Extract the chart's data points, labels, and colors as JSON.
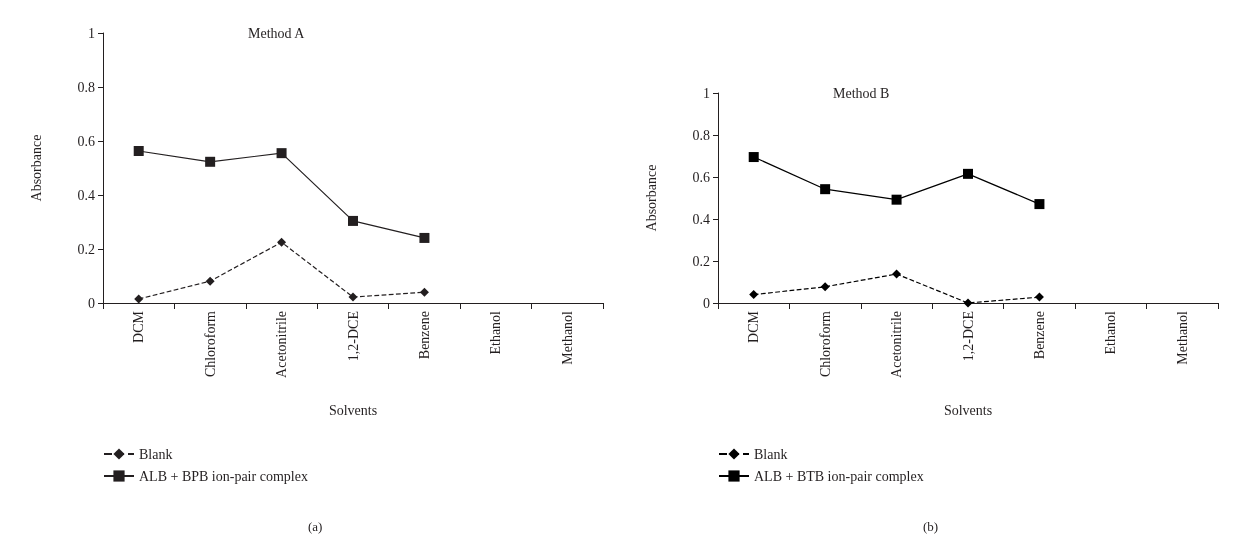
{
  "chart_data": [
    {
      "type": "line",
      "title": "Method A",
      "xlabel": "Solvents",
      "ylabel": "Absorbance",
      "categories": [
        "DCM",
        "Chloroform",
        "Acetonitrile",
        "1,2-DCE",
        "Benzene",
        "Ethanol",
        "Methanol"
      ],
      "ylim": [
        0,
        1
      ],
      "yticks": [
        0,
        0.2,
        0.4,
        0.6,
        0.8,
        1
      ],
      "grid": false,
      "legend": "bottom left",
      "annotations": [
        "(a)"
      ],
      "series": [
        {
          "name": "Blank",
          "color": "#231f20",
          "marker": "diamond",
          "line_style": "dashed",
          "values": [
            0.015,
            0.081,
            0.225,
            0.022,
            0.04,
            null,
            null
          ]
        },
        {
          "name": "ALB + BPB ion-pair complex",
          "color": "#231f20",
          "marker": "square",
          "line_style": "solid",
          "values": [
            0.563,
            0.523,
            0.555,
            0.304,
            0.241,
            null,
            null
          ]
        }
      ]
    },
    {
      "type": "line",
      "title": "Method B",
      "xlabel": "Solvents",
      "ylabel": "Absorbance",
      "categories": [
        "DCM",
        "Chloroform",
        "Acetonitrile",
        "1,2-DCE",
        "Benzene",
        "Ethanol",
        "Methanol"
      ],
      "ylim": [
        0,
        1
      ],
      "yticks": [
        0,
        0.2,
        0.4,
        0.6,
        0.8,
        1
      ],
      "grid": false,
      "legend": "bottom left",
      "annotations": [
        "(b)"
      ],
      "series": [
        {
          "name": "Blank",
          "color": "#000000",
          "marker": "diamond",
          "line_style": "dashed",
          "values": [
            0.04,
            0.077,
            0.138,
            0,
            0.028,
            null,
            null
          ]
        },
        {
          "name": "ALB + BTB ion-pair complex",
          "color": "#000000",
          "marker": "square",
          "line_style": "solid",
          "values": [
            0.695,
            0.542,
            0.492,
            0.615,
            0.471,
            null,
            null
          ]
        }
      ]
    }
  ]
}
